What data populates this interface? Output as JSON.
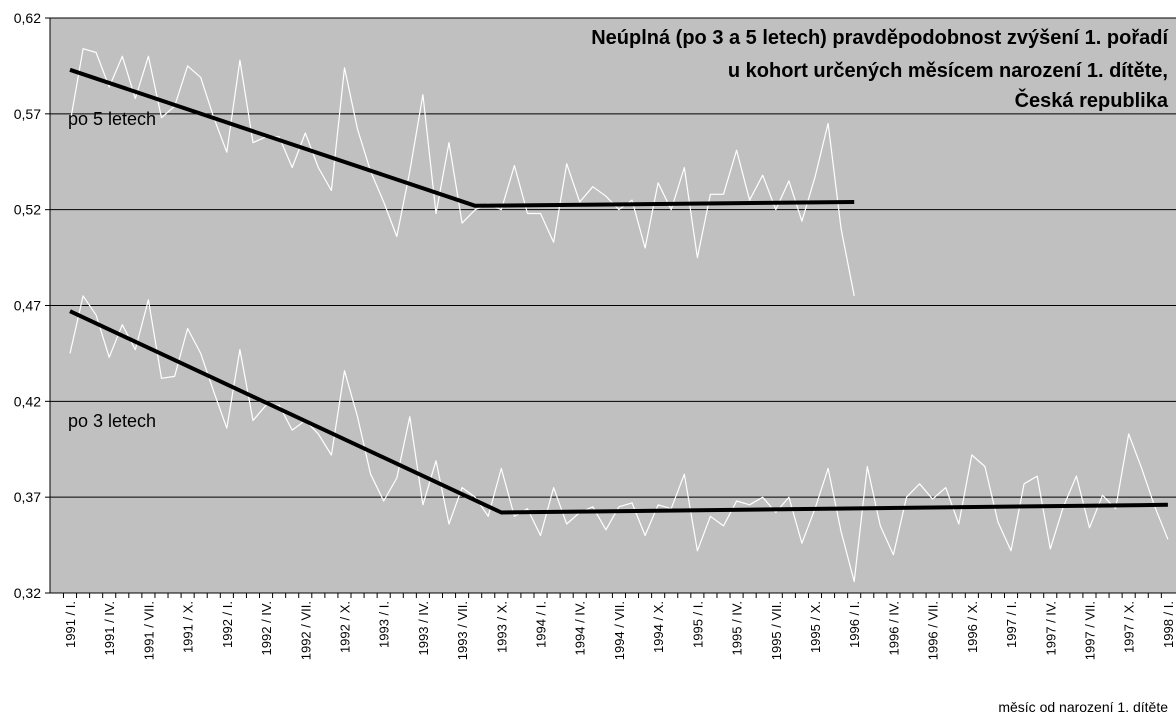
{
  "chart_data": {
    "type": "line",
    "title": [
      "Neúplná (po 3 a 5 letech) pravděpodobnost zvýšení 1. pořadí",
      "u kohort určených měsícem narození 1. dítěte,",
      "Česká republika"
    ],
    "x_label": "měsíc od narození 1. dítěte",
    "categories": [
      "1991 / I.",
      null,
      null,
      "1991 / IV.",
      null,
      null,
      "1991 / VII.",
      null,
      null,
      "1991 / X.",
      null,
      null,
      "1992 / I.",
      null,
      null,
      "1992 / IV.",
      null,
      null,
      "1992 / VII.",
      null,
      null,
      "1992 / X.",
      null,
      null,
      "1993 / I.",
      null,
      null,
      "1993 / IV.",
      null,
      null,
      "1993 / VII.",
      null,
      null,
      "1993 / X.",
      null,
      null,
      "1994 / I.",
      null,
      null,
      "1994 / IV.",
      null,
      null,
      "1994 / VII.",
      null,
      null,
      "1994 / X.",
      null,
      null,
      "1995 / I.",
      null,
      null,
      "1995 / IV.",
      null,
      null,
      "1995 / VII.",
      null,
      null,
      "1995 / X.",
      null,
      null,
      "1996 / I.",
      null,
      null,
      "1996 / IV.",
      null,
      null,
      "1996 / VII.",
      null,
      null,
      "1996 / X.",
      null,
      null,
      "1997 / I.",
      null,
      null,
      "1997 / IV.",
      null,
      null,
      "1997 / VII.",
      null,
      null,
      "1997 / X.",
      null,
      null,
      "1998 / I."
    ],
    "series": [
      {
        "name": "po 5 letech",
        "color": "#ffffff",
        "values": [
          0.565,
          0.604,
          0.602,
          0.584,
          0.6,
          0.578,
          0.6,
          0.568,
          0.574,
          0.595,
          0.589,
          0.568,
          0.55,
          0.598,
          0.555,
          0.558,
          0.558,
          0.542,
          0.56,
          0.542,
          0.53,
          0.594,
          0.562,
          0.54,
          0.524,
          0.506,
          0.54,
          0.58,
          0.518,
          0.555,
          0.513,
          0.52,
          0.523,
          0.52,
          0.543,
          0.518,
          0.518,
          0.503,
          0.544,
          0.524,
          0.532,
          0.527,
          0.52,
          0.525,
          0.5,
          0.534,
          0.52,
          0.542,
          0.495,
          0.528,
          0.528,
          0.551,
          0.525,
          0.538,
          0.52,
          0.535,
          0.514,
          0.537,
          0.565,
          0.51,
          0.475,
          null,
          null,
          null,
          null,
          null,
          null,
          null,
          null,
          null,
          null,
          null,
          null,
          null,
          null,
          null,
          null,
          null,
          null,
          null,
          null,
          null,
          null,
          null,
          null
        ]
      },
      {
        "name": "po 3 letech",
        "color": "#ffffff",
        "values": [
          0.445,
          0.475,
          0.465,
          0.443,
          0.46,
          0.447,
          0.473,
          0.432,
          0.433,
          0.458,
          0.445,
          0.425,
          0.406,
          0.447,
          0.41,
          0.418,
          0.418,
          0.405,
          0.41,
          0.403,
          0.392,
          0.436,
          0.412,
          0.382,
          0.368,
          0.38,
          0.412,
          0.366,
          0.389,
          0.356,
          0.375,
          0.37,
          0.36,
          0.385,
          0.36,
          0.364,
          0.35,
          0.375,
          0.356,
          0.362,
          0.365,
          0.353,
          0.365,
          0.367,
          0.35,
          0.366,
          0.364,
          0.382,
          0.342,
          0.36,
          0.355,
          0.368,
          0.366,
          0.37,
          0.362,
          0.37,
          0.346,
          0.364,
          0.385,
          0.352,
          0.326,
          0.386,
          0.355,
          0.34,
          0.37,
          0.377,
          0.369,
          0.375,
          0.356,
          0.392,
          0.386,
          0.357,
          0.342,
          0.377,
          0.381,
          0.343,
          0.365,
          0.381,
          0.354,
          0.371,
          0.364,
          0.403,
          0.385,
          0.365,
          0.348
        ]
      }
    ],
    "trend_lines": [
      {
        "color": "#000000",
        "x": [
          0,
          31,
          60
        ],
        "values": [
          0.593,
          0.522,
          0.524
        ]
      },
      {
        "color": "#000000",
        "x": [
          0,
          33,
          84
        ],
        "values": [
          0.467,
          0.362,
          0.366
        ]
      }
    ],
    "ylim": [
      0.32,
      0.62
    ],
    "yticks": [
      {
        "value": 0.32,
        "label": "0,32"
      },
      {
        "value": 0.37,
        "label": "0,37"
      },
      {
        "value": 0.42,
        "label": "0,42"
      },
      {
        "value": 0.47,
        "label": "0,47"
      },
      {
        "value": 0.52,
        "label": "0,52"
      },
      {
        "value": 0.57,
        "label": "0,57"
      },
      {
        "value": 0.62,
        "label": "0,62"
      }
    ],
    "grid": true,
    "background": "#c0c0c0"
  }
}
